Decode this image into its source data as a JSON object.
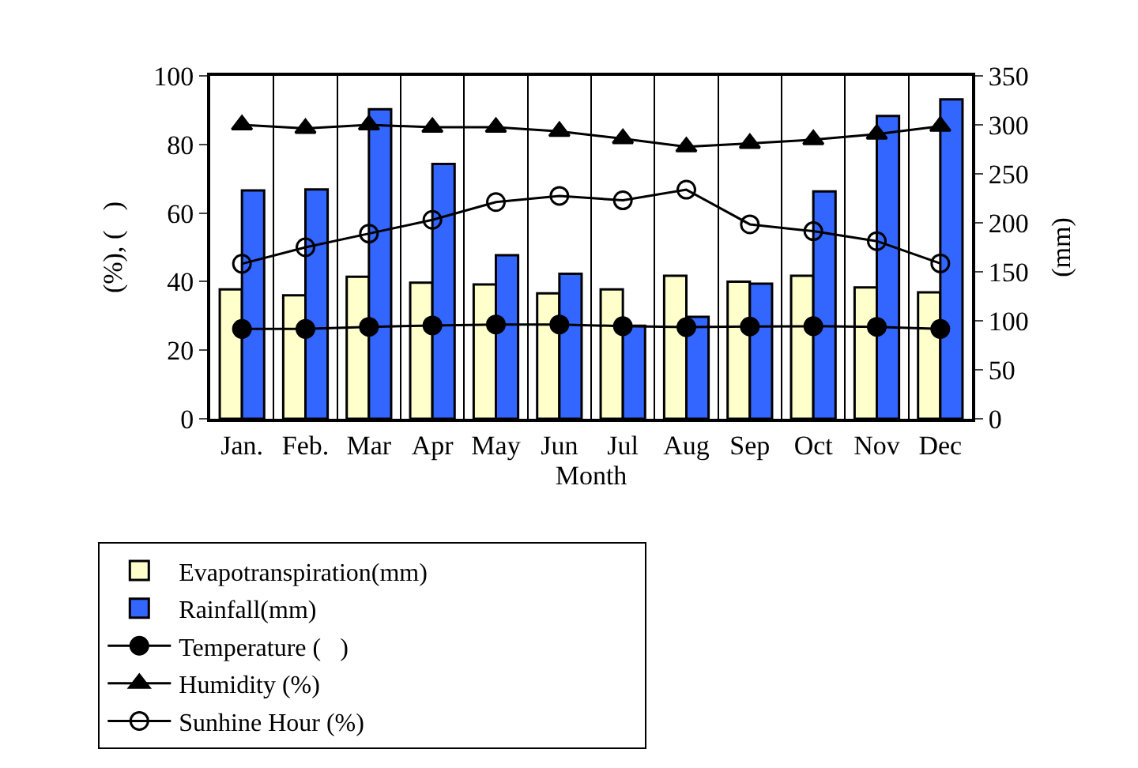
{
  "chart_data": {
    "type": "bar",
    "xlabel": "Month",
    "ylabel": "(%), (   )",
    "y2label": "(mm)",
    "categories": [
      "Jan.",
      "Feb.",
      "Mar",
      "Apr",
      "May",
      "Jun",
      "Jul",
      "Aug",
      "Sep",
      "Oct",
      "Nov",
      "Dec"
    ],
    "series": [
      {
        "name": "Evapotranspiration(mm)",
        "axis": "y2",
        "color": "#ffffcc",
        "values": [
          132,
          126,
          145,
          139,
          137,
          128,
          132,
          146,
          140,
          146,
          134,
          129
        ]
      },
      {
        "name": "Rainfall(mm)",
        "axis": "y2",
        "color": "#3366ff",
        "values": [
          233,
          234,
          316,
          260,
          167,
          148,
          95,
          104,
          138,
          232,
          309,
          326
        ]
      },
      {
        "name": "Temperature (   )",
        "type": "line",
        "marker": "circle",
        "color": "#000000",
        "values": [
          26.2,
          26.2,
          26.8,
          27.2,
          27.5,
          27.5,
          27.0,
          26.7,
          26.9,
          27.0,
          26.8,
          26.2
        ]
      },
      {
        "name": "Humidity (%)",
        "type": "line",
        "marker": "triangle",
        "color": "#000000",
        "values": [
          85.7,
          84.7,
          85.7,
          85.0,
          85.0,
          83.8,
          81.7,
          79.3,
          80.3,
          81.4,
          83.0,
          85.3
        ]
      },
      {
        "name": "Sunhine Hour (%)",
        "type": "line",
        "marker": "circle-open",
        "color": "#000000",
        "values": [
          45.2,
          50.0,
          54.0,
          58.0,
          63.2,
          65.0,
          63.7,
          66.8,
          56.7,
          54.7,
          51.8,
          45.3
        ]
      }
    ],
    "ylim": [
      0,
      100
    ],
    "yticks": [
      0,
      20,
      40,
      60,
      80,
      100
    ],
    "y2lim": [
      0,
      350
    ],
    "y2ticks": [
      0,
      50,
      100,
      150,
      200,
      250,
      300,
      350
    ],
    "grid": "x",
    "legend": "bottom"
  }
}
